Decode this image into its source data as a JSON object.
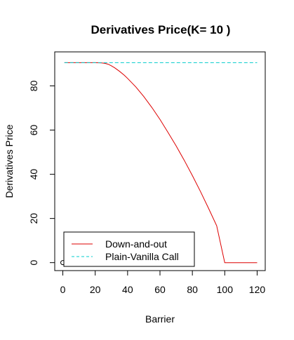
{
  "chart_data": {
    "type": "line",
    "title": "Derivatives Price(K= 10 )",
    "xlabel": "Barrier",
    "ylabel": "Derivatives Price",
    "xlim": [
      -5,
      125
    ],
    "ylim": [
      -3.6,
      95.4
    ],
    "xticks": [
      0,
      20,
      40,
      60,
      80,
      100,
      120
    ],
    "yticks": [
      0,
      20,
      40,
      60,
      80
    ],
    "legend_position": "bottom-left",
    "series": [
      {
        "name": "Down-and-out",
        "color": "#dd0000",
        "line_style": "solid",
        "x": [
          1,
          5,
          10,
          15,
          20,
          24,
          26,
          28,
          30,
          32,
          35,
          38,
          40,
          45,
          50,
          55,
          60,
          65,
          70,
          75,
          80,
          85,
          90,
          95,
          100,
          105,
          110,
          115,
          120
        ],
        "y": [
          90.5,
          90.5,
          90.5,
          90.5,
          90.5,
          90.4,
          90.2,
          89.8,
          89.1,
          88.2,
          86.6,
          84.8,
          83.4,
          79.6,
          75.2,
          70.2,
          64.8,
          58.9,
          52.8,
          46.3,
          39.4,
          32.2,
          24.6,
          16.7,
          0.0,
          0.0,
          0.0,
          0.0,
          0.0
        ]
      },
      {
        "name": "Plain-Vanilla Call",
        "color": "#00cccc",
        "line_style": "dashed",
        "x": [
          1,
          120
        ],
        "y": [
          90.5,
          90.5
        ]
      }
    ],
    "extra_points": [
      {
        "x": 0,
        "y": 0,
        "marker": "open-circle",
        "color": "#000000"
      }
    ]
  }
}
